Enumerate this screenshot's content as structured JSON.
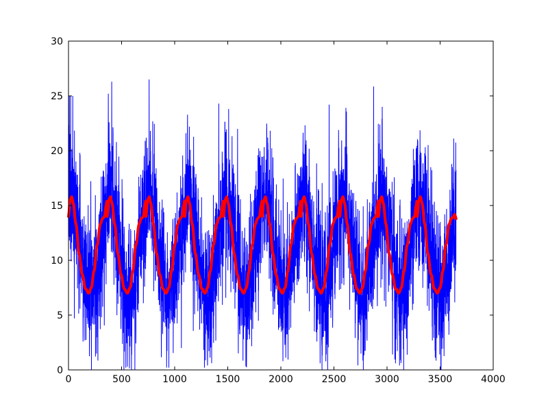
{
  "chart_data": {
    "type": "line",
    "title": "",
    "xlabel": "",
    "ylabel": "",
    "xlim": [
      0,
      4000
    ],
    "ylim": [
      0,
      30
    ],
    "x_ticks": [
      0,
      500,
      1000,
      1500,
      2000,
      2500,
      3000,
      3500,
      4000
    ],
    "y_ticks": [
      0,
      5,
      10,
      15,
      20,
      25,
      30
    ],
    "grid": false,
    "legend": "none",
    "noise_seed": 7,
    "series": [
      {
        "color": "#0000ff",
        "line_width": 1,
        "x_start": 0,
        "x_end": 3650,
        "points": 3650,
        "style": "noisy daily values around the seasonal curve",
        "spread_note": "values range approximately 0 to 26",
        "mean": 11.1,
        "amplitude": 4.4,
        "period": 365,
        "peak_x": 31,
        "noise_std": 3.2,
        "highlights": [
          {
            "x": 8,
            "y": 25.0
          },
          {
            "x": 20,
            "y": 25.0
          },
          {
            "x": 40,
            "y": 25.0
          },
          {
            "x": 375,
            "y": 25.2
          },
          {
            "x": 407,
            "y": 26.3
          },
          {
            "x": 555,
            "y": 0.3
          },
          {
            "x": 945,
            "y": 0.2
          },
          {
            "x": 1280,
            "y": 0.2
          },
          {
            "x": 1415,
            "y": 24.3
          },
          {
            "x": 2455,
            "y": 24.2
          },
          {
            "x": 2955,
            "y": 24.0
          },
          {
            "x": 3080,
            "y": 0.6
          },
          {
            "x": 2020,
            "y": 0.8
          }
        ]
      },
      {
        "color": "#ff0000",
        "line_width": 4,
        "x_start": 0,
        "x_end": 3650,
        "style": "smooth seasonal fit",
        "period": 365,
        "one_period_shape": [
          {
            "phase": 0,
            "y": 14.0
          },
          {
            "phase": 15,
            "y": 15.5
          },
          {
            "phase": 30,
            "y": 15.8
          },
          {
            "phase": 45,
            "y": 15.2
          },
          {
            "phase": 70,
            "y": 13.3
          },
          {
            "phase": 100,
            "y": 10.6
          },
          {
            "phase": 130,
            "y": 8.7
          },
          {
            "phase": 160,
            "y": 7.4
          },
          {
            "phase": 190,
            "y": 7.0
          },
          {
            "phase": 215,
            "y": 7.5
          },
          {
            "phase": 240,
            "y": 9.0
          },
          {
            "phase": 270,
            "y": 11.4
          },
          {
            "phase": 300,
            "y": 13.3
          },
          {
            "phase": 320,
            "y": 13.8
          },
          {
            "phase": 340,
            "y": 14.0
          },
          {
            "phase": 352,
            "y": 14.9
          },
          {
            "phase": 365,
            "y": 15.6
          }
        ],
        "end_value": 13.8
      }
    ]
  }
}
